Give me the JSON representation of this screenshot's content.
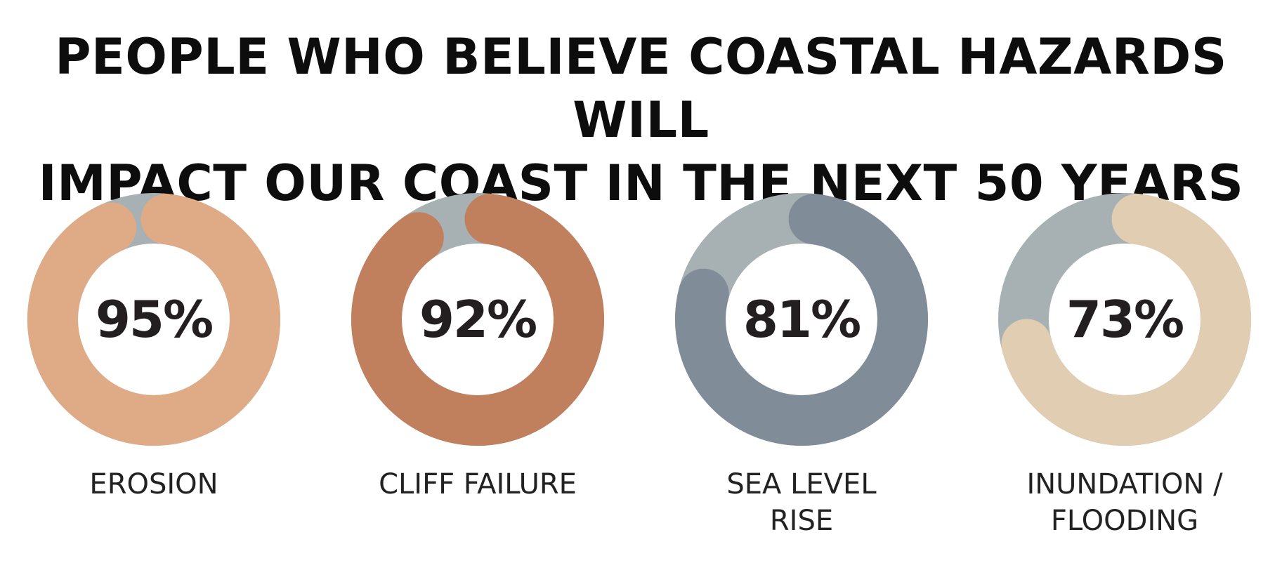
{
  "title": {
    "line1": "PEOPLE WHO BELIEVE COASTAL HAZARDS WILL",
    "line2": "IMPACT OUR COAST IN THE NEXT 50 YEARS"
  },
  "chart_data": {
    "type": "pie",
    "title": "PEOPLE WHO BELIEVE COASTAL HAZARDS WILL IMPACT OUR COAST IN THE NEXT 50 YEARS",
    "track_color": "#a7b0b3",
    "items": [
      {
        "label_lines": [
          "EROSION"
        ],
        "value": 95,
        "value_label": "95%",
        "color": "#dfab87"
      },
      {
        "label_lines": [
          "CLIFF FAILURE"
        ],
        "value": 92,
        "value_label": "92%",
        "color": "#c07f5d"
      },
      {
        "label_lines": [
          "SEA LEVEL",
          "RISE"
        ],
        "value": 81,
        "value_label": "81%",
        "color": "#808d99"
      },
      {
        "label_lines": [
          "INUNDATION /",
          "FLOODING"
        ],
        "value": 73,
        "value_label": "73%",
        "color": "#e0cdb2"
      }
    ]
  }
}
